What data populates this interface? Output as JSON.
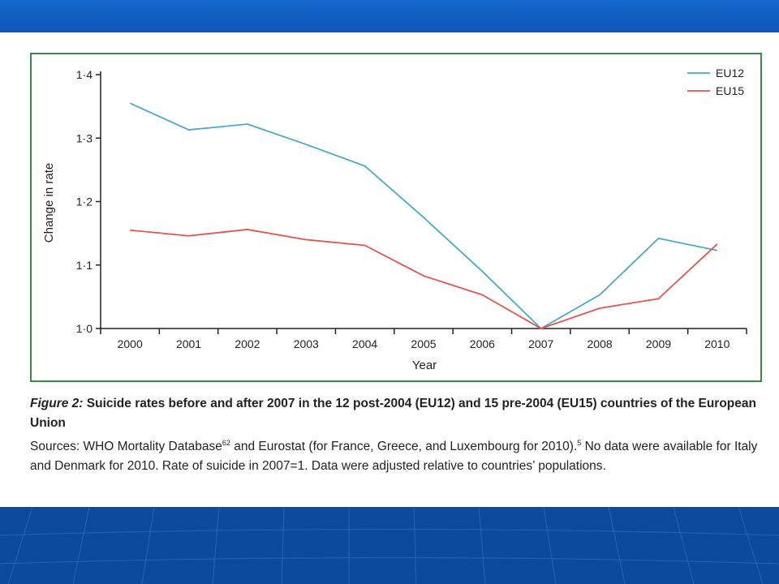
{
  "colors": {
    "EU12": "#4aa9c9",
    "EU15": "#e2564f",
    "frame": "#3b8a48",
    "slide_blue": "#0a3f9c"
  },
  "chart_data": {
    "type": "line",
    "x": [
      2000,
      2001,
      2002,
      2003,
      2004,
      2005,
      2006,
      2007,
      2008,
      2009,
      2010
    ],
    "x_tick_labels": [
      "2000",
      "2001",
      "2002",
      "2003",
      "2004",
      "2005",
      "2006",
      "2007",
      "2008",
      "2009",
      "2010"
    ],
    "y_tick_labels": [
      "1·0",
      "1·1",
      "1·2",
      "1·3",
      "1·4"
    ],
    "y_ticks": [
      1.0,
      1.1,
      1.2,
      1.3,
      1.4
    ],
    "series": [
      {
        "name": "EU12",
        "color": "#4aa9c9",
        "values": [
          1.355,
          1.313,
          1.322,
          1.29,
          1.256,
          1.175,
          1.09,
          1.0,
          1.053,
          1.142,
          1.123
        ]
      },
      {
        "name": "EU15",
        "color": "#e2564f",
        "values": [
          1.155,
          1.146,
          1.156,
          1.14,
          1.131,
          1.083,
          1.053,
          1.0,
          1.032,
          1.047,
          1.133
        ]
      }
    ],
    "xlabel": "Year",
    "ylabel": "Change in rate",
    "ylim": [
      1.0,
      1.4
    ],
    "xlim": [
      2000,
      2010
    ],
    "grid": false,
    "legend_position": "top-right"
  },
  "caption": {
    "figure_label": "Figure 2:",
    "title": "Suicide rates before and after 2007 in the 12 post-2004 (EU12) and 15 pre-2004 (EU15) countries of the European Union",
    "sources_part1": "Sources: WHO Mortality Database",
    "ref1": "62",
    "sources_part2": " and Eurostat (for France, Greece, and Luxembourg for 2010).",
    "ref2": "5",
    "sources_part3": " No data were available for Italy and Denmark for 2010. Rate of suicide in 2007=1. Data were adjusted relative to countries’ populations."
  }
}
